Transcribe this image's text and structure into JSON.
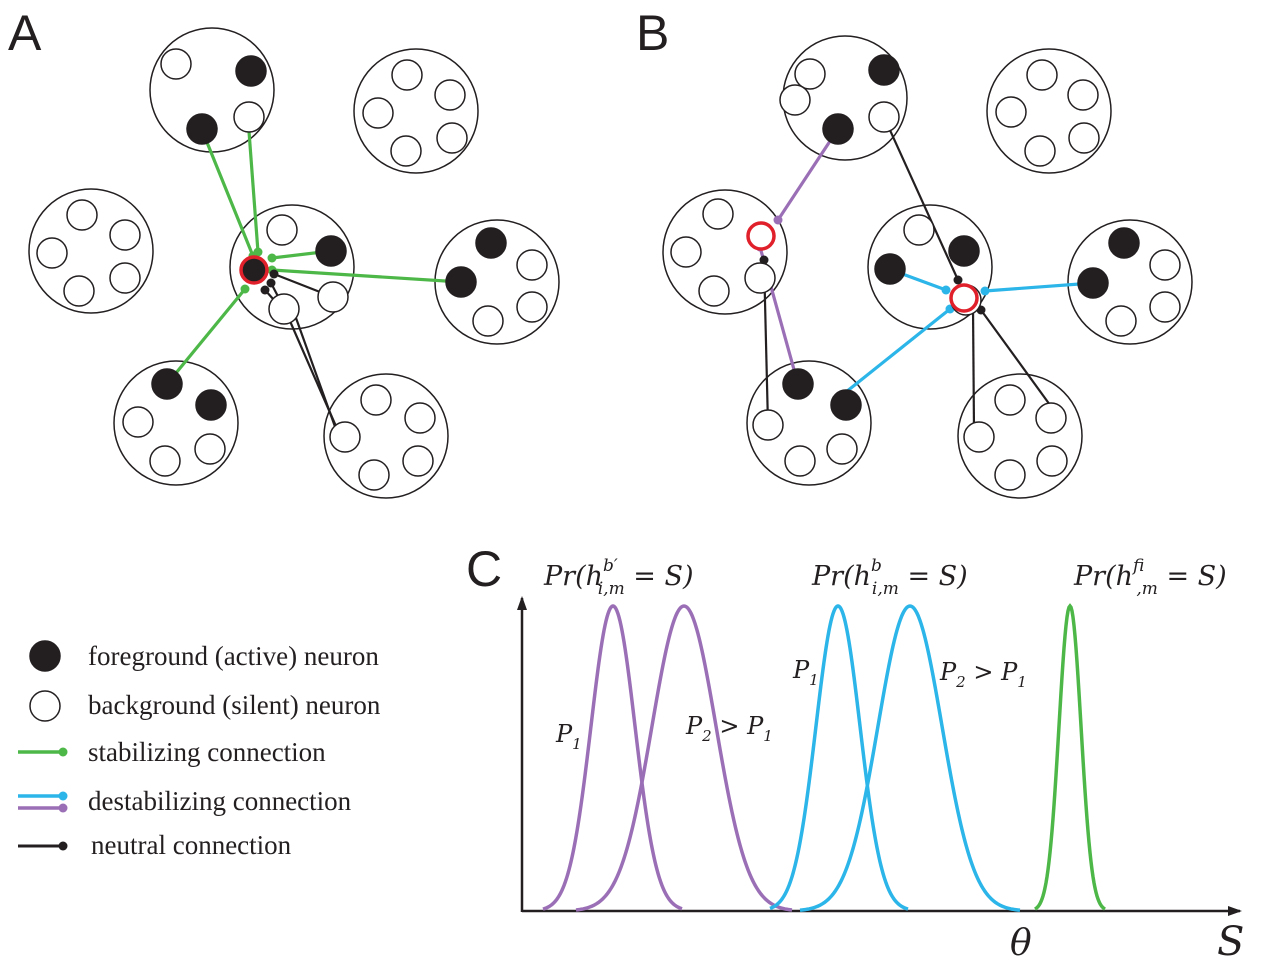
{
  "panels": {
    "a": "A",
    "b": "B",
    "c": "C"
  },
  "colors": {
    "stabilizing": "#4db848",
    "destabilizing_blue": "#2bb5e8",
    "destabilizing_purple": "#9b6fb6",
    "neutral": "#231f20",
    "highlight": "#e0202a"
  },
  "legend": [
    {
      "kind": "active",
      "label": "foreground (active) neuron"
    },
    {
      "kind": "silent",
      "label": "background (silent) neuron"
    },
    {
      "kind": "stabilizing",
      "label": "stabilizing connection"
    },
    {
      "kind": "destabilizing",
      "label": "destabilizing connection"
    },
    {
      "kind": "neutral",
      "label": "neutral connection"
    }
  ],
  "distribution_labels": {
    "pr_prefix": "Pr(h",
    "pr_suffix": " = S)",
    "subscript": "i,m",
    "sup_bprime": "b′",
    "sup_b": "b",
    "sup_f": "f",
    "p1": "P",
    "p1_sub": "1",
    "p2_gt_p1_left": "P",
    "p2_sub": "2",
    "gt": " > P",
    "gt_sub": "1"
  },
  "axis": {
    "x_label": "S",
    "threshold_label": "θ"
  }
}
